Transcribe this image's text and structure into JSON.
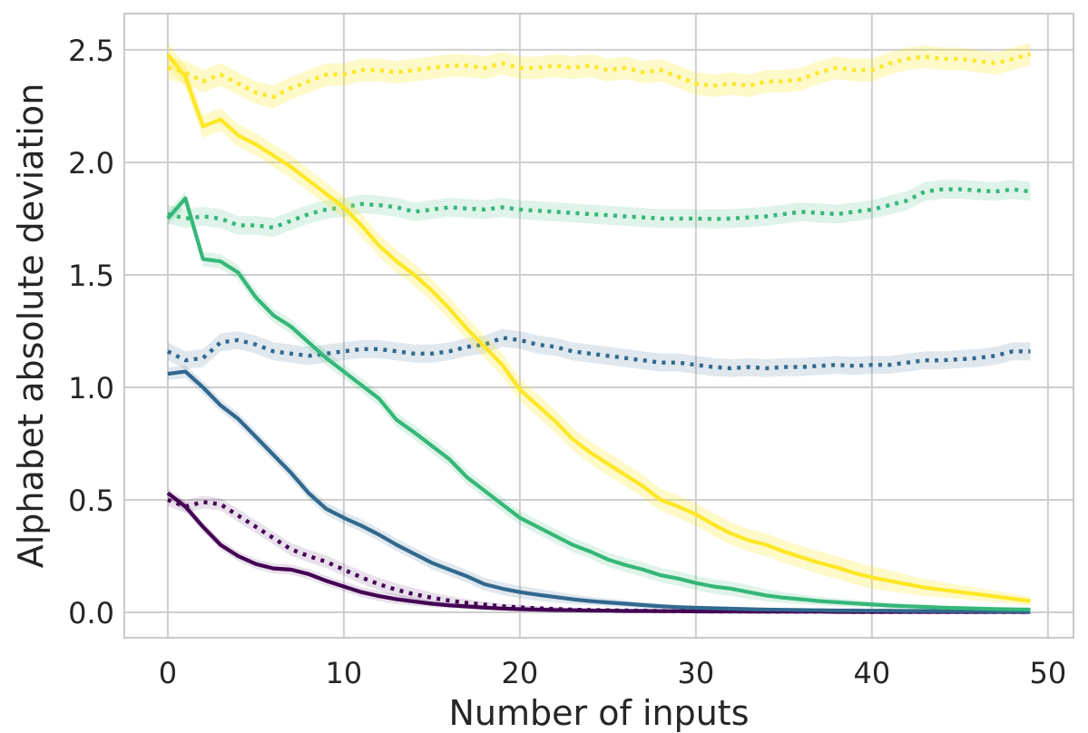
{
  "chart_data": {
    "type": "line",
    "title": "",
    "xlabel": "Number of inputs",
    "ylabel": "Alphabet absolute deviation",
    "xlim": [
      -2.47,
      51.45
    ],
    "ylim": [
      -0.113,
      2.661
    ],
    "xticks": [
      0,
      10,
      20,
      30,
      40,
      50
    ],
    "xtick_labels": [
      "0",
      "10",
      "20",
      "30",
      "40",
      "50"
    ],
    "yticks": [
      0.0,
      0.5,
      1.0,
      1.5,
      2.0,
      2.5
    ],
    "ytick_labels": [
      "0.0",
      "0.5",
      "1.0",
      "1.5",
      "2.0",
      "2.5"
    ],
    "grid": true,
    "legend": "none",
    "x": [
      0,
      1,
      2,
      3,
      4,
      5,
      6,
      7,
      8,
      9,
      10,
      11,
      12,
      13,
      14,
      15,
      16,
      17,
      18,
      19,
      20,
      21,
      22,
      23,
      24,
      25,
      26,
      27,
      28,
      29,
      30,
      31,
      32,
      33,
      34,
      35,
      36,
      37,
      38,
      39,
      40,
      41,
      42,
      43,
      44,
      45,
      46,
      47,
      48,
      49
    ],
    "series": [
      {
        "name": "purple-dotted",
        "color": "#440154",
        "band_alpha": 0.12,
        "band_halfwidth": 0.028,
        "linestyle": "dotted",
        "values": [
          0.5,
          0.47,
          0.49,
          0.48,
          0.43,
          0.38,
          0.33,
          0.28,
          0.25,
          0.225,
          0.19,
          0.155,
          0.125,
          0.1,
          0.08,
          0.065,
          0.052,
          0.042,
          0.034,
          0.027,
          0.022,
          0.018,
          0.015,
          0.012,
          0.01,
          0.009,
          0.008,
          0.007,
          0.006,
          0.005,
          0.005,
          0.004,
          0.004,
          0.004,
          0.003,
          0.003,
          0.003,
          0.003,
          0.003,
          0.002,
          0.002,
          0.002,
          0.002,
          0.002,
          0.002,
          0.002,
          0.002,
          0.002,
          0.002,
          0.002
        ]
      },
      {
        "name": "purple-solid",
        "color": "#440154",
        "band_alpha": 0.12,
        "band_halfwidth": 0.022,
        "linestyle": "solid",
        "values": [
          0.53,
          0.47,
          0.38,
          0.3,
          0.25,
          0.215,
          0.195,
          0.19,
          0.17,
          0.14,
          0.115,
          0.09,
          0.072,
          0.058,
          0.048,
          0.038,
          0.031,
          0.026,
          0.021,
          0.017,
          0.014,
          0.012,
          0.01,
          0.009,
          0.008,
          0.007,
          0.006,
          0.006,
          0.005,
          0.005,
          0.004,
          0.004,
          0.004,
          0.003,
          0.003,
          0.003,
          0.003,
          0.003,
          0.002,
          0.002,
          0.002,
          0.002,
          0.002,
          0.002,
          0.002,
          0.002,
          0.002,
          0.002,
          0.002,
          0.002
        ]
      },
      {
        "name": "blue-dotted",
        "color": "#31688e",
        "band_alpha": 0.15,
        "band_halfwidth": 0.04,
        "linestyle": "dotted",
        "values": [
          1.16,
          1.12,
          1.13,
          1.2,
          1.21,
          1.19,
          1.16,
          1.15,
          1.14,
          1.15,
          1.16,
          1.17,
          1.17,
          1.16,
          1.15,
          1.15,
          1.16,
          1.18,
          1.19,
          1.22,
          1.21,
          1.19,
          1.18,
          1.16,
          1.15,
          1.14,
          1.13,
          1.12,
          1.11,
          1.11,
          1.1,
          1.09,
          1.085,
          1.09,
          1.085,
          1.09,
          1.09,
          1.095,
          1.1,
          1.095,
          1.1,
          1.1,
          1.11,
          1.12,
          1.12,
          1.125,
          1.13,
          1.14,
          1.16,
          1.16
        ]
      },
      {
        "name": "blue-solid",
        "color": "#31688e",
        "band_alpha": 0.15,
        "band_halfwidth": 0.028,
        "linestyle": "solid",
        "values": [
          1.06,
          1.07,
          1.0,
          0.92,
          0.86,
          0.78,
          0.7,
          0.62,
          0.53,
          0.46,
          0.42,
          0.385,
          0.345,
          0.3,
          0.26,
          0.22,
          0.19,
          0.16,
          0.125,
          0.105,
          0.09,
          0.078,
          0.068,
          0.058,
          0.05,
          0.044,
          0.038,
          0.032,
          0.027,
          0.023,
          0.02,
          0.018,
          0.016,
          0.014,
          0.012,
          0.011,
          0.01,
          0.009,
          0.008,
          0.008,
          0.007,
          0.007,
          0.006,
          0.006,
          0.005,
          0.005,
          0.005,
          0.004,
          0.004,
          0.004
        ]
      },
      {
        "name": "green-dotted",
        "color": "#35b779",
        "band_alpha": 0.16,
        "band_halfwidth": 0.042,
        "linestyle": "dotted",
        "values": [
          1.77,
          1.75,
          1.76,
          1.75,
          1.72,
          1.72,
          1.71,
          1.74,
          1.77,
          1.79,
          1.8,
          1.815,
          1.81,
          1.8,
          1.78,
          1.79,
          1.8,
          1.795,
          1.79,
          1.8,
          1.79,
          1.785,
          1.78,
          1.775,
          1.77,
          1.765,
          1.76,
          1.755,
          1.75,
          1.75,
          1.75,
          1.748,
          1.75,
          1.755,
          1.76,
          1.77,
          1.78,
          1.775,
          1.77,
          1.78,
          1.79,
          1.81,
          1.83,
          1.87,
          1.88,
          1.88,
          1.875,
          1.87,
          1.88,
          1.87
        ]
      },
      {
        "name": "green-solid",
        "color": "#35b779",
        "band_alpha": 0.16,
        "band_halfwidth": 0.032,
        "linestyle": "solid",
        "values": [
          1.75,
          1.84,
          1.57,
          1.56,
          1.51,
          1.4,
          1.32,
          1.27,
          1.2,
          1.13,
          1.07,
          1.01,
          0.95,
          0.855,
          0.8,
          0.74,
          0.68,
          0.6,
          0.54,
          0.48,
          0.42,
          0.38,
          0.34,
          0.3,
          0.27,
          0.235,
          0.21,
          0.19,
          0.165,
          0.15,
          0.13,
          0.115,
          0.105,
          0.09,
          0.075,
          0.065,
          0.058,
          0.05,
          0.045,
          0.04,
          0.035,
          0.03,
          0.027,
          0.024,
          0.021,
          0.019,
          0.017,
          0.015,
          0.013,
          0.012
        ]
      },
      {
        "name": "yellow-dotted",
        "color": "#fde725",
        "band_alpha": 0.25,
        "band_halfwidth": 0.05,
        "linestyle": "dotted",
        "values": [
          2.42,
          2.4,
          2.36,
          2.39,
          2.35,
          2.31,
          2.29,
          2.33,
          2.36,
          2.39,
          2.39,
          2.41,
          2.41,
          2.4,
          2.41,
          2.42,
          2.43,
          2.43,
          2.42,
          2.44,
          2.42,
          2.42,
          2.43,
          2.42,
          2.43,
          2.41,
          2.42,
          2.4,
          2.41,
          2.38,
          2.35,
          2.34,
          2.35,
          2.34,
          2.36,
          2.36,
          2.37,
          2.4,
          2.42,
          2.41,
          2.41,
          2.44,
          2.46,
          2.47,
          2.46,
          2.46,
          2.45,
          2.44,
          2.46,
          2.48
        ]
      },
      {
        "name": "yellow-solid",
        "color": "#fde725",
        "band_alpha": 0.25,
        "band_halfwidth": 0.05,
        "linestyle": "solid",
        "values": [
          2.48,
          2.38,
          2.16,
          2.19,
          2.12,
          2.08,
          2.03,
          1.98,
          1.92,
          1.86,
          1.8,
          1.72,
          1.63,
          1.56,
          1.5,
          1.43,
          1.35,
          1.26,
          1.18,
          1.1,
          0.99,
          0.92,
          0.85,
          0.77,
          0.71,
          0.66,
          0.61,
          0.56,
          0.5,
          0.47,
          0.435,
          0.39,
          0.35,
          0.32,
          0.3,
          0.27,
          0.245,
          0.22,
          0.2,
          0.175,
          0.155,
          0.14,
          0.125,
          0.11,
          0.1,
          0.09,
          0.08,
          0.07,
          0.06,
          0.05
        ]
      }
    ]
  },
  "style": {
    "background": "#ffffff",
    "grid_color": "#cecece",
    "spine_color": "#c9c9c9",
    "text_color": "#262626"
  }
}
